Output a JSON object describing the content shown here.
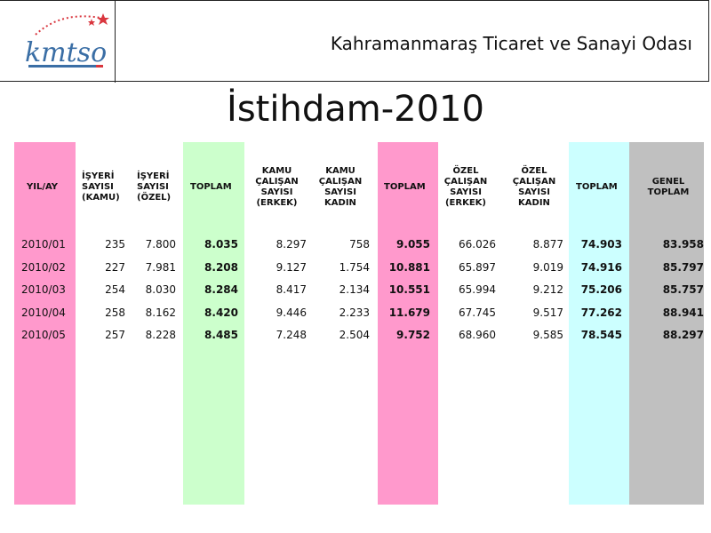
{
  "header": {
    "org_name": "Kahramanmaraş Ticaret ve Sanayi Odası",
    "logo_text": "kmtso"
  },
  "slide": {
    "title": "İstihdam-2010"
  },
  "colors": {
    "pink": "#ff99cc",
    "green": "#ccffcc",
    "cyan": "#ccffff",
    "gray": "#c0c0c0",
    "logo_blue": "#3a6ea5",
    "logo_red": "#d9363e"
  },
  "table": {
    "columns": [
      "YIL/AY",
      "İŞYERİ\nSAYISI\n(KAMU)",
      "İŞYERİ\nSAYISI\n(ÖZEL)",
      "TOPLAM",
      "KAMU\nÇALIŞAN\nSAYISI\n(ERKEK)",
      "KAMU\nÇALIŞAN\nSAYISI\nKADIN",
      "TOPLAM",
      "ÖZEL\nÇALIŞAN\nSAYISI\n(ERKEK)",
      "ÖZEL\nÇALIŞAN\nSAYISI\nKADIN",
      "TOPLAM",
      "GENEL\nTOPLAM"
    ],
    "rows": [
      [
        "2010/01",
        "235",
        "7.800",
        "8.035",
        "8.297",
        "758",
        "9.055",
        "66.026",
        "8.877",
        "74.903",
        "83.958"
      ],
      [
        "2010/02",
        "227",
        "7.981",
        "8.208",
        "9.127",
        "1.754",
        "10.881",
        "65.897",
        "9.019",
        "74.916",
        "85.797"
      ],
      [
        "2010/03",
        "254",
        "8.030",
        "8.284",
        "8.417",
        "2.134",
        "10.551",
        "65.994",
        "9.212",
        "75.206",
        "85.757"
      ],
      [
        "2010/04",
        "258",
        "8.162",
        "8.420",
        "9.446",
        "2.233",
        "11.679",
        "67.745",
        "9.517",
        "77.262",
        "88.941"
      ],
      [
        "2010/05",
        "257",
        "8.228",
        "8.485",
        "7.248",
        "2.504",
        "9.752",
        "68.960",
        "9.585",
        "78.545",
        "88.297"
      ]
    ]
  }
}
